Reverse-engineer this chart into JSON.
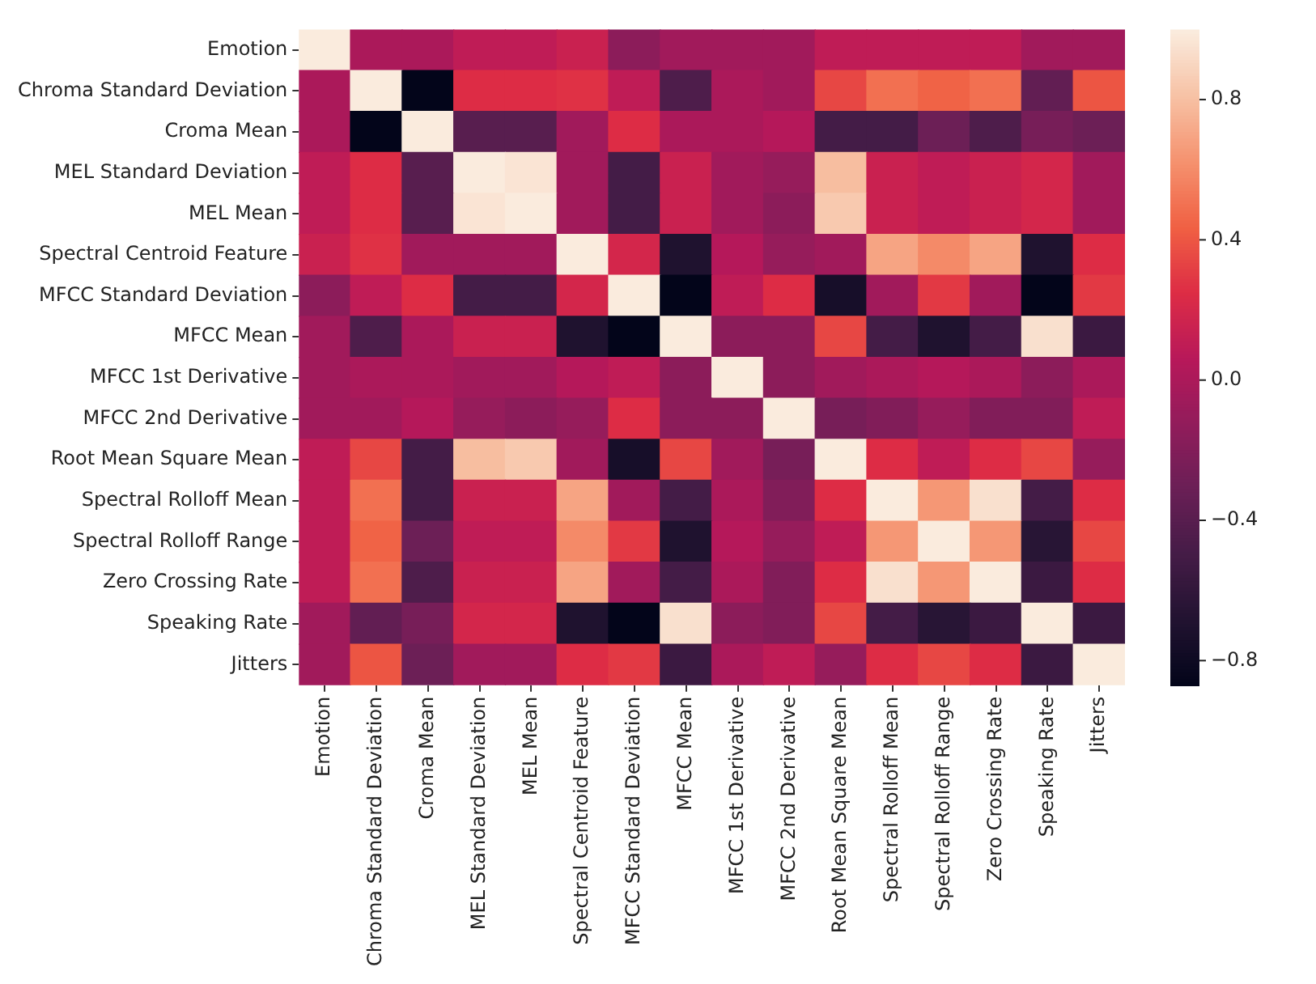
{
  "chart_data": {
    "type": "heatmap",
    "categories": [
      "Emotion",
      "Chroma Standard Deviation",
      "Croma Mean",
      "MEL Standard Deviation",
      "MEL Mean",
      "Spectral Centroid Feature",
      "MFCC Standard Deviation",
      "MFCC Mean",
      "MFCC 1st Derivative",
      "MFCC 2nd Derivative",
      "Root Mean Square Mean",
      "Spectral Rolloff Mean",
      "Spectral Rolloff Range",
      "Zero Crossing Rate",
      "Speaking Rate",
      "Jitters"
    ],
    "y_categories": [
      "Emotion",
      "Chroma Standard Deviation",
      "Croma Mean",
      "MEL Standard Deviation",
      "MEL Mean",
      "Spectral Centroid Feature",
      "MFCC Standard Deviation",
      "MFCC Mean",
      "MFCC 1st Derivative",
      "MFCC 2nd Derivative",
      "Root Mean Square Mean",
      "Spectral Rolloff Mean",
      "Spectral Rolloff Range",
      "Zero Crossing Rate",
      "Speaking Rate",
      "Jitters"
    ],
    "cells": [
      [
        1,
        0.0,
        0.0,
        0.1,
        0.1,
        0.15,
        -0.15,
        -0.05,
        -0.05,
        -0.05,
        0.1,
        0.1,
        0.1,
        0.1,
        -0.05,
        -0.05
      ],
      [
        0.0,
        1,
        -0.87,
        0.25,
        0.25,
        0.27,
        0.1,
        -0.45,
        0.0,
        -0.05,
        0.35,
        0.5,
        0.45,
        0.5,
        -0.35,
        0.4
      ],
      [
        0.0,
        -0.87,
        1,
        -0.4,
        -0.4,
        -0.05,
        0.25,
        0.0,
        0.0,
        0.05,
        -0.5,
        -0.5,
        -0.3,
        -0.45,
        -0.25,
        -0.3
      ],
      [
        0.1,
        0.25,
        -0.4,
        1,
        0.97,
        -0.05,
        -0.5,
        0.15,
        -0.05,
        -0.1,
        0.8,
        0.15,
        0.1,
        0.15,
        0.2,
        -0.05
      ],
      [
        0.1,
        0.25,
        -0.4,
        0.97,
        1,
        -0.05,
        -0.5,
        0.15,
        -0.05,
        -0.15,
        0.85,
        0.15,
        0.1,
        0.15,
        0.2,
        -0.05
      ],
      [
        0.15,
        0.27,
        -0.05,
        -0.05,
        -0.05,
        1,
        0.2,
        -0.7,
        0.05,
        -0.1,
        -0.05,
        0.7,
        0.6,
        0.7,
        -0.7,
        0.25
      ],
      [
        -0.15,
        0.1,
        0.25,
        -0.5,
        -0.5,
        0.2,
        1,
        -0.87,
        0.1,
        0.25,
        -0.75,
        -0.05,
        0.3,
        -0.05,
        -0.87,
        0.3
      ],
      [
        -0.05,
        -0.45,
        0.0,
        0.15,
        0.15,
        -0.7,
        -0.87,
        1,
        -0.15,
        -0.15,
        0.35,
        -0.5,
        -0.7,
        -0.5,
        0.95,
        -0.55
      ],
      [
        -0.05,
        0.0,
        0.0,
        -0.05,
        -0.05,
        0.05,
        0.1,
        -0.15,
        1,
        -0.15,
        -0.05,
        0.0,
        0.05,
        0.0,
        -0.15,
        0.0
      ],
      [
        -0.05,
        -0.05,
        0.05,
        -0.1,
        -0.15,
        -0.1,
        0.25,
        -0.15,
        -0.15,
        1,
        -0.25,
        -0.2,
        -0.1,
        -0.2,
        -0.2,
        0.1
      ],
      [
        0.1,
        0.35,
        -0.5,
        0.8,
        0.85,
        -0.05,
        -0.75,
        0.35,
        -0.05,
        -0.25,
        1,
        0.25,
        0.1,
        0.25,
        0.35,
        -0.1
      ],
      [
        0.1,
        0.5,
        -0.5,
        0.15,
        0.15,
        0.7,
        -0.05,
        -0.5,
        0.0,
        -0.2,
        0.25,
        1,
        0.65,
        0.95,
        -0.5,
        0.25
      ],
      [
        0.1,
        0.45,
        -0.3,
        0.1,
        0.1,
        0.6,
        0.3,
        -0.7,
        0.05,
        -0.1,
        0.1,
        0.65,
        1,
        0.65,
        -0.65,
        0.35
      ],
      [
        0.1,
        0.5,
        -0.45,
        0.15,
        0.15,
        0.7,
        -0.05,
        -0.5,
        0.0,
        -0.2,
        0.25,
        0.95,
        0.65,
        1,
        -0.55,
        0.25
      ],
      [
        -0.05,
        -0.35,
        -0.25,
        0.2,
        0.2,
        -0.7,
        -0.87,
        0.95,
        -0.15,
        -0.2,
        0.35,
        -0.5,
        -0.65,
        -0.55,
        1,
        -0.55
      ],
      [
        -0.05,
        0.4,
        -0.3,
        -0.05,
        -0.05,
        0.25,
        0.3,
        -0.55,
        0.0,
        0.1,
        -0.1,
        0.25,
        0.35,
        0.25,
        -0.55,
        1
      ]
    ],
    "clim": [
      -0.87,
      1
    ],
    "cticks": [
      {
        "value": -0.8,
        "label": "−0.8"
      },
      {
        "value": -0.4,
        "label": "−0.4"
      },
      {
        "value": 0,
        "label": "0.0"
      },
      0.4,
      0.8
    ]
  }
}
